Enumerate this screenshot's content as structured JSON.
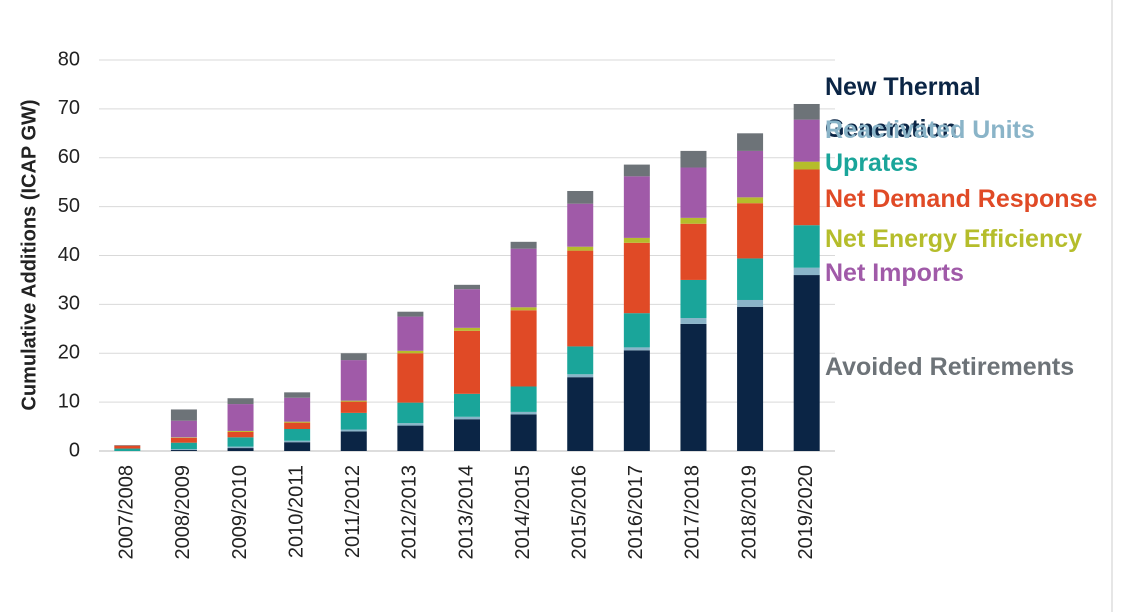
{
  "chart_data": {
    "type": "stacked_bar",
    "y_label": "Cumulative Additions (ICAP GW)",
    "categories": [
      "2007/2008",
      "2008/2009",
      "2009/2010",
      "2010/2011",
      "2011/2012",
      "2012/2013",
      "2013/2014",
      "2014/2015",
      "2015/2016",
      "2016/2017",
      "2017/2018",
      "2018/2019",
      "2019/2020"
    ],
    "series": [
      {
        "name": "New Thermal Generation",
        "color": "#0b2545",
        "values": [
          0,
          0.2,
          0.6,
          1.8,
          4.0,
          5.2,
          6.5,
          7.5,
          15.1,
          20.6,
          26.0,
          29.5,
          36.0
        ]
      },
      {
        "name": "Reactivated Units",
        "color": "#8ab4c8",
        "values": [
          0,
          0.2,
          0.3,
          0.3,
          0.4,
          0.5,
          0.5,
          0.5,
          0.6,
          0.6,
          1.2,
          1.4,
          1.5
        ]
      },
      {
        "name": "Uprates",
        "color": "#1aa59a",
        "values": [
          0.5,
          1.3,
          1.9,
          2.4,
          3.4,
          4.2,
          4.7,
          5.2,
          5.7,
          7.0,
          7.8,
          8.5,
          8.7
        ]
      },
      {
        "name": "Net Demand Response",
        "color": "#e04a26",
        "values": [
          0.6,
          1.0,
          1.1,
          1.3,
          2.3,
          10.1,
          12.9,
          15.6,
          19.6,
          14.4,
          11.5,
          11.3,
          11.4
        ]
      },
      {
        "name": "Net Energy Efficiency",
        "color": "#b5bd2b",
        "values": [
          0,
          0.1,
          0.2,
          0.2,
          0.2,
          0.5,
          0.6,
          0.6,
          0.8,
          1.0,
          1.2,
          1.2,
          1.6
        ]
      },
      {
        "name": "Net Imports",
        "color": "#a05aa8",
        "values": [
          0,
          3.4,
          5.5,
          4.9,
          8.3,
          7.0,
          7.9,
          12.0,
          8.8,
          12.6,
          10.3,
          9.5,
          8.6
        ]
      },
      {
        "name": "Avoided Retirements",
        "color": "#6d7378",
        "values": [
          0.1,
          2.3,
          1.2,
          1.1,
          1.4,
          1.0,
          0.9,
          1.4,
          2.6,
          2.4,
          3.4,
          3.6,
          3.2
        ]
      }
    ],
    "ylim": [
      0,
      80
    ],
    "yticks": [
      0,
      10,
      20,
      30,
      40,
      50,
      60,
      70,
      80
    ],
    "grid": true
  }
}
